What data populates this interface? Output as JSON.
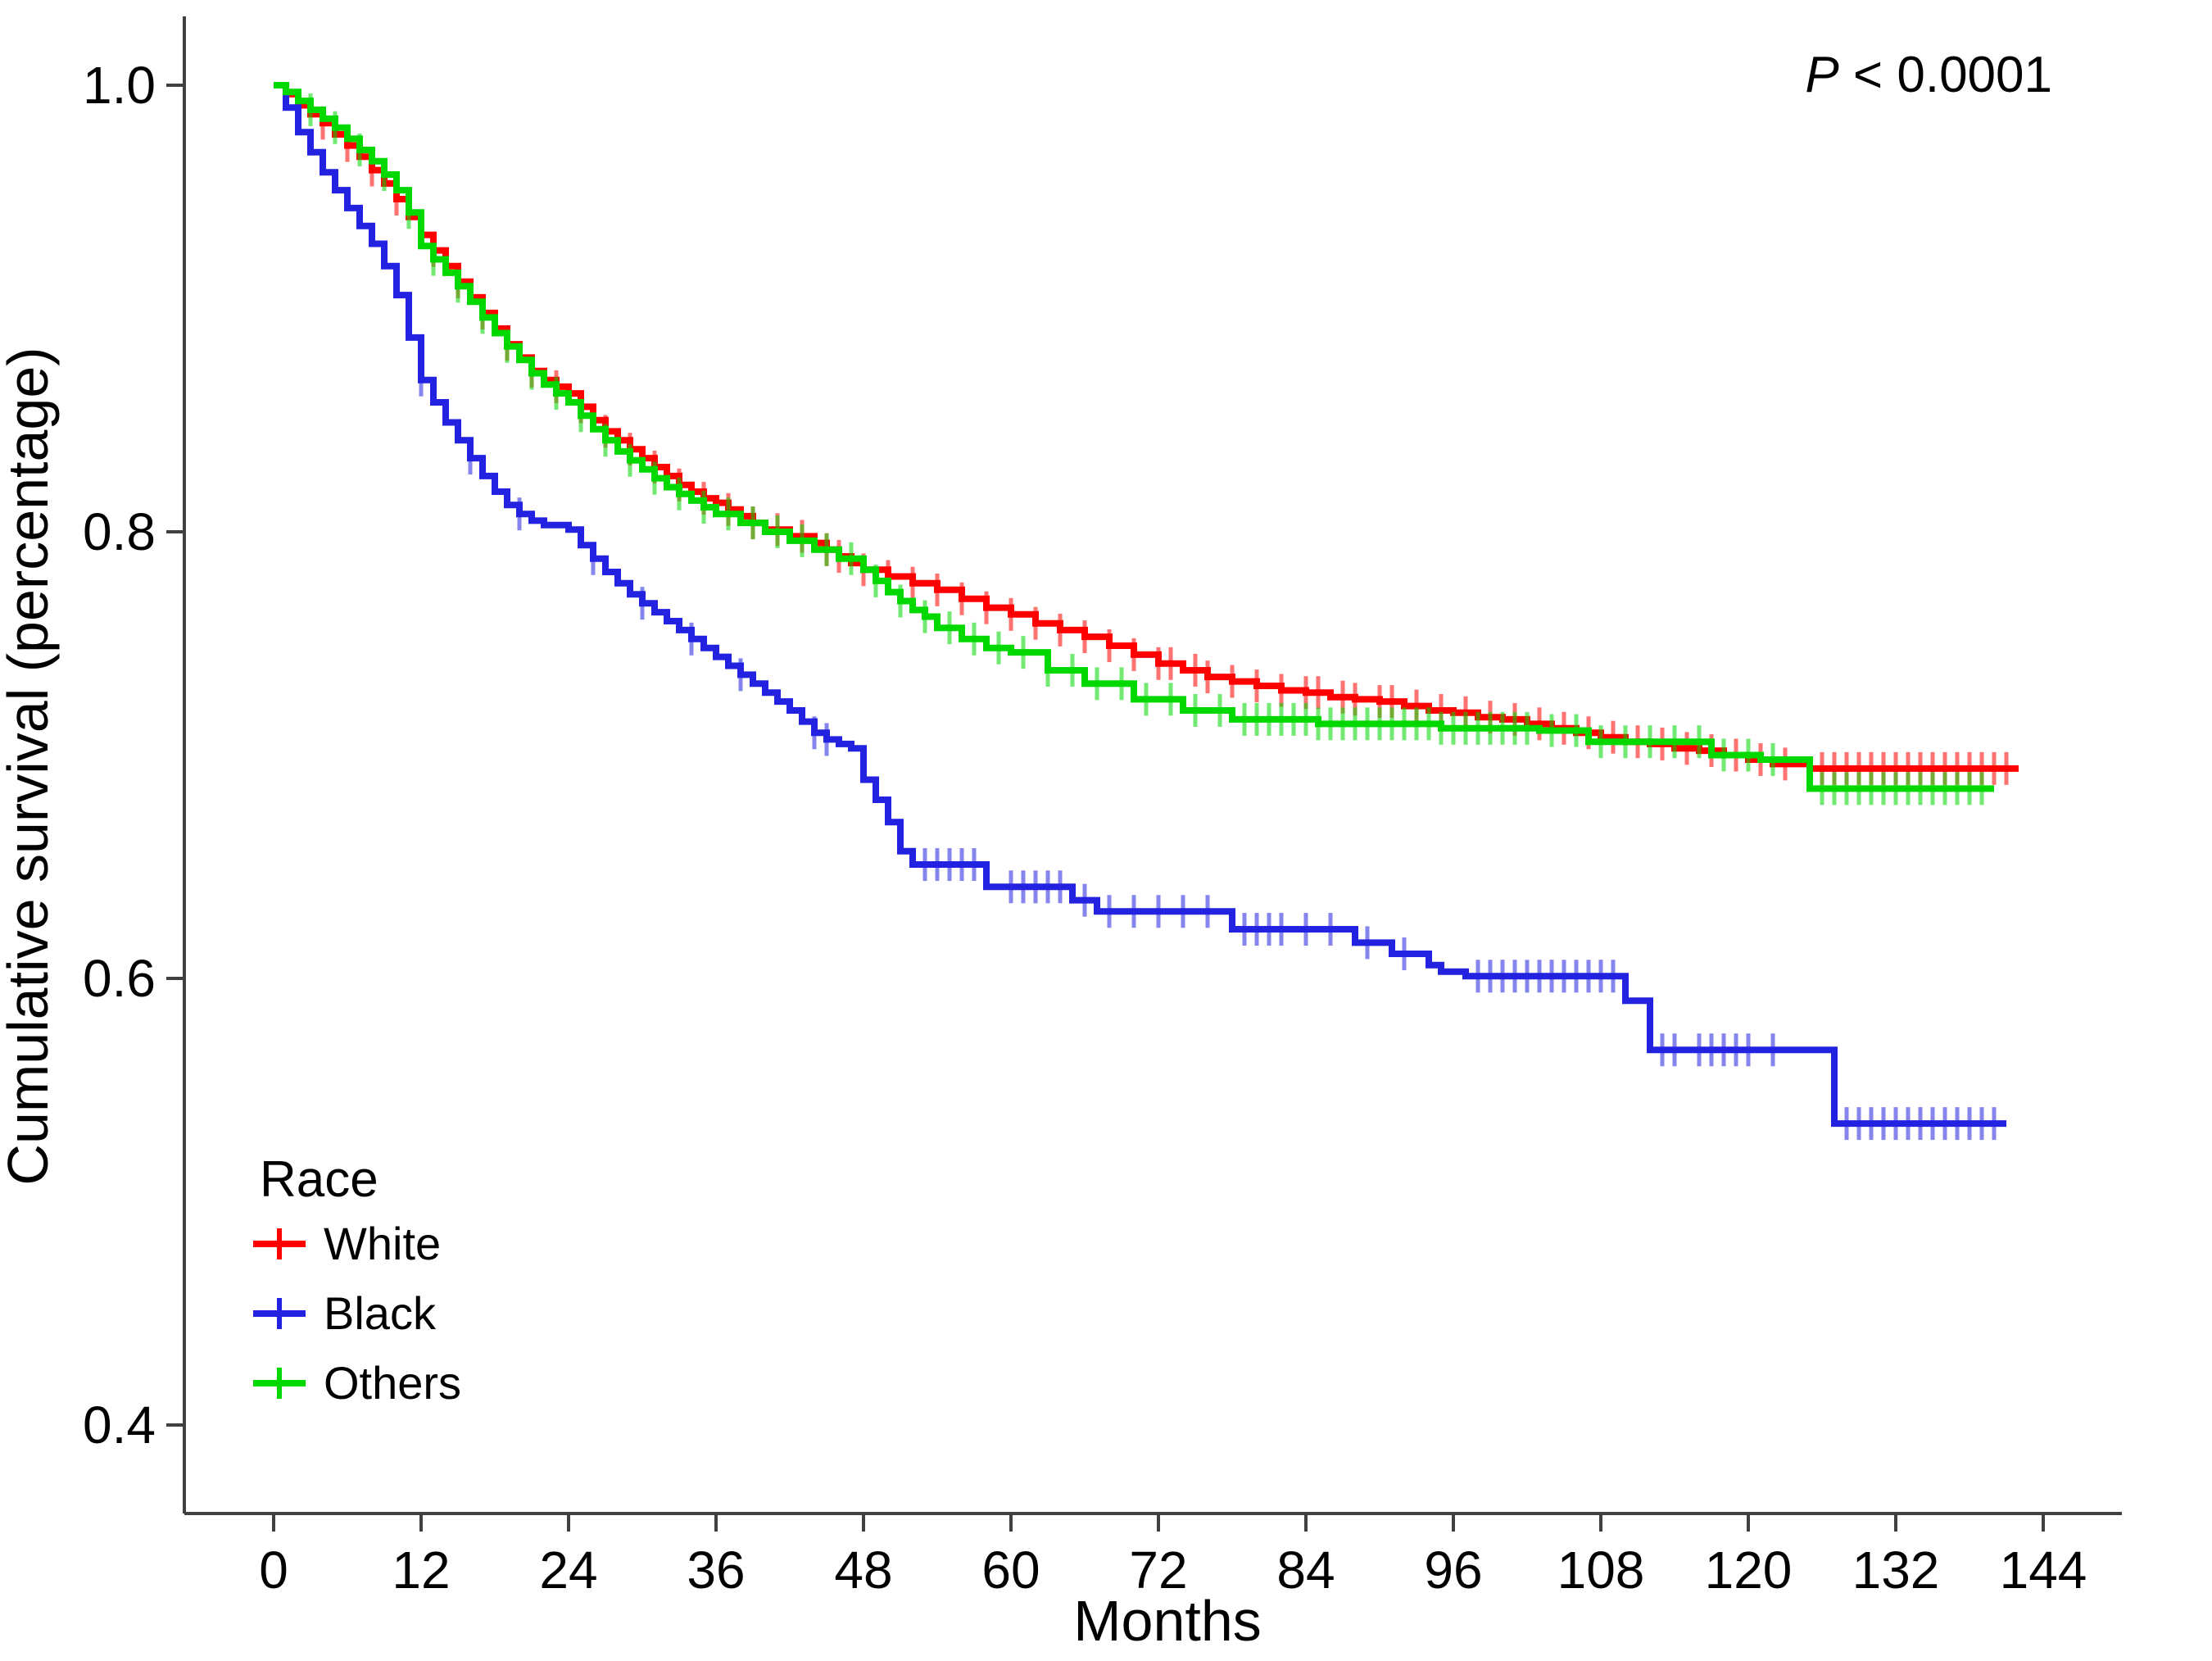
{
  "annotations": {
    "p_italic": "P",
    "p_rest": " < 0.0001"
  },
  "chart_data": {
    "type": "line",
    "subtype": "kaplan-meier-step-curves",
    "title": "",
    "xlabel": "Months",
    "ylabel": "Cumulative survival (percentage)",
    "xlim": [
      0,
      144
    ],
    "ylim": [
      0.4,
      1.0
    ],
    "grid": "off",
    "p_value": "P < 0.0001",
    "xticks": [
      0,
      12,
      24,
      36,
      48,
      60,
      72,
      84,
      96,
      108,
      120,
      132,
      144
    ],
    "yticks": [
      {
        "value": 1.0,
        "label": "1.0"
      },
      {
        "value": 0.8,
        "label": "0.8"
      },
      {
        "value": 0.6,
        "label": "0.6"
      },
      {
        "value": 0.4,
        "label": "0.4"
      }
    ],
    "legend": {
      "title": "Race",
      "position": "bottom-left",
      "items": [
        {
          "label": "White",
          "color": "#ff0000"
        },
        {
          "label": "Black",
          "color": "#2222e0"
        },
        {
          "label": "Others",
          "color": "#00d800"
        }
      ]
    },
    "series": [
      {
        "name": "White",
        "color": "#ff0000",
        "end_month": 142,
        "points": [
          [
            0,
            1.0
          ],
          [
            1,
            0.996
          ],
          [
            2,
            0.991
          ],
          [
            3,
            0.987
          ],
          [
            4,
            0.983
          ],
          [
            5,
            0.978
          ],
          [
            6,
            0.973
          ],
          [
            7,
            0.968
          ],
          [
            8,
            0.962
          ],
          [
            9,
            0.956
          ],
          [
            10,
            0.949
          ],
          [
            11,
            0.941
          ],
          [
            12,
            0.933
          ],
          [
            13,
            0.926
          ],
          [
            14,
            0.919
          ],
          [
            15,
            0.912
          ],
          [
            16,
            0.905
          ],
          [
            17,
            0.898
          ],
          [
            18,
            0.891
          ],
          [
            19,
            0.884
          ],
          [
            20,
            0.878
          ],
          [
            21,
            0.872
          ],
          [
            22,
            0.868
          ],
          [
            23,
            0.865
          ],
          [
            24,
            0.862
          ],
          [
            25,
            0.856
          ],
          [
            26,
            0.85
          ],
          [
            27,
            0.845
          ],
          [
            28,
            0.841
          ],
          [
            29,
            0.837
          ],
          [
            30,
            0.833
          ],
          [
            31,
            0.829
          ],
          [
            32,
            0.825
          ],
          [
            33,
            0.821
          ],
          [
            34,
            0.818
          ],
          [
            35,
            0.815
          ],
          [
            36,
            0.813
          ],
          [
            37,
            0.81
          ],
          [
            38,
            0.807
          ],
          [
            39,
            0.804
          ],
          [
            40,
            0.801
          ],
          [
            42,
            0.798
          ],
          [
            44,
            0.795
          ],
          [
            45,
            0.792
          ],
          [
            46,
            0.789
          ],
          [
            47,
            0.786
          ],
          [
            48,
            0.783
          ],
          [
            50,
            0.78
          ],
          [
            52,
            0.777
          ],
          [
            54,
            0.774
          ],
          [
            56,
            0.77
          ],
          [
            58,
            0.766
          ],
          [
            60,
            0.763
          ],
          [
            62,
            0.759
          ],
          [
            64,
            0.756
          ],
          [
            66,
            0.753
          ],
          [
            68,
            0.749
          ],
          [
            70,
            0.745
          ],
          [
            72,
            0.741
          ],
          [
            74,
            0.738
          ],
          [
            76,
            0.735
          ],
          [
            78,
            0.733
          ],
          [
            80,
            0.731
          ],
          [
            82,
            0.729
          ],
          [
            84,
            0.728
          ],
          [
            86,
            0.726
          ],
          [
            88,
            0.725
          ],
          [
            90,
            0.724
          ],
          [
            92,
            0.722
          ],
          [
            94,
            0.72
          ],
          [
            96,
            0.719
          ],
          [
            98,
            0.717
          ],
          [
            100,
            0.716
          ],
          [
            102,
            0.714
          ],
          [
            104,
            0.712
          ],
          [
            106,
            0.71
          ],
          [
            108,
            0.708
          ],
          [
            110,
            0.706
          ],
          [
            112,
            0.705
          ],
          [
            114,
            0.703
          ],
          [
            116,
            0.702
          ],
          [
            118,
            0.7
          ],
          [
            120,
            0.698
          ],
          [
            122,
            0.696
          ],
          [
            125,
            0.694
          ]
        ],
        "censor_ticks": [
          2,
          4,
          6,
          8,
          10,
          13,
          15,
          17,
          19,
          21,
          23,
          25,
          27,
          29,
          31,
          33,
          35,
          37,
          39,
          41,
          43,
          45,
          46,
          48,
          50,
          52,
          54,
          56,
          58,
          60,
          62,
          64,
          66,
          68,
          70,
          72,
          73,
          75,
          76,
          78,
          80,
          82,
          84,
          85,
          87,
          88,
          90,
          91,
          93,
          95,
          97,
          99,
          101,
          103,
          105,
          107,
          109,
          111,
          113,
          115,
          117,
          119,
          121,
          123,
          126,
          127,
          128,
          129,
          130,
          131,
          132,
          133,
          134,
          135,
          136,
          137,
          138,
          139,
          140,
          141
        ]
      },
      {
        "name": "Black",
        "color": "#2222e0",
        "end_month": 141,
        "points": [
          [
            0,
            1.0
          ],
          [
            1,
            0.99
          ],
          [
            2,
            0.979
          ],
          [
            3,
            0.97
          ],
          [
            4,
            0.961
          ],
          [
            5,
            0.953
          ],
          [
            6,
            0.945
          ],
          [
            7,
            0.937
          ],
          [
            8,
            0.929
          ],
          [
            9,
            0.919
          ],
          [
            10,
            0.906
          ],
          [
            11,
            0.887
          ],
          [
            12,
            0.868
          ],
          [
            13,
            0.858
          ],
          [
            14,
            0.849
          ],
          [
            15,
            0.841
          ],
          [
            16,
            0.833
          ],
          [
            17,
            0.825
          ],
          [
            18,
            0.818
          ],
          [
            19,
            0.812
          ],
          [
            20,
            0.808
          ],
          [
            21,
            0.805
          ],
          [
            22,
            0.803
          ],
          [
            24,
            0.801
          ],
          [
            25,
            0.794
          ],
          [
            26,
            0.788
          ],
          [
            27,
            0.782
          ],
          [
            28,
            0.777
          ],
          [
            29,
            0.772
          ],
          [
            30,
            0.768
          ],
          [
            31,
            0.764
          ],
          [
            32,
            0.76
          ],
          [
            33,
            0.756
          ],
          [
            34,
            0.752
          ],
          [
            35,
            0.748
          ],
          [
            36,
            0.744
          ],
          [
            37,
            0.74
          ],
          [
            38,
            0.736
          ],
          [
            39,
            0.732
          ],
          [
            40,
            0.728
          ],
          [
            41,
            0.724
          ],
          [
            42,
            0.72
          ],
          [
            43,
            0.715
          ],
          [
            44,
            0.71
          ],
          [
            45,
            0.707
          ],
          [
            46,
            0.705
          ],
          [
            47,
            0.703
          ],
          [
            48,
            0.689
          ],
          [
            49,
            0.68
          ],
          [
            50,
            0.67
          ],
          [
            51,
            0.657
          ],
          [
            52,
            0.651
          ],
          [
            58,
            0.641
          ],
          [
            65,
            0.635
          ],
          [
            67,
            0.63
          ],
          [
            78,
            0.622
          ],
          [
            88,
            0.616
          ],
          [
            91,
            0.611
          ],
          [
            94,
            0.606
          ],
          [
            95,
            0.603
          ],
          [
            97,
            0.601
          ],
          [
            110,
            0.59
          ],
          [
            112,
            0.568
          ],
          [
            127,
            0.535
          ]
        ],
        "censor_ticks": [
          12,
          16,
          20,
          26,
          30,
          34,
          38,
          44,
          45,
          53,
          54,
          55,
          56,
          57,
          60,
          61,
          62,
          63,
          64,
          66,
          68,
          70,
          72,
          74,
          76,
          79,
          80,
          81,
          82,
          84,
          86,
          89,
          92,
          98,
          99,
          100,
          101,
          102,
          103,
          104,
          105,
          106,
          107,
          108,
          109,
          113,
          114,
          116,
          117,
          118,
          119,
          120,
          122,
          128,
          129,
          130,
          131,
          132,
          133,
          134,
          135,
          136,
          137,
          138,
          139,
          140
        ]
      },
      {
        "name": "Others",
        "color": "#00d800",
        "end_month": 140,
        "points": [
          [
            0,
            1.0
          ],
          [
            1,
            0.997
          ],
          [
            2,
            0.993
          ],
          [
            3,
            0.989
          ],
          [
            4,
            0.985
          ],
          [
            5,
            0.981
          ],
          [
            6,
            0.976
          ],
          [
            7,
            0.971
          ],
          [
            8,
            0.966
          ],
          [
            9,
            0.96
          ],
          [
            10,
            0.953
          ],
          [
            11,
            0.943
          ],
          [
            12,
            0.928
          ],
          [
            13,
            0.922
          ],
          [
            14,
            0.916
          ],
          [
            15,
            0.91
          ],
          [
            16,
            0.903
          ],
          [
            17,
            0.896
          ],
          [
            18,
            0.889
          ],
          [
            19,
            0.883
          ],
          [
            20,
            0.877
          ],
          [
            21,
            0.871
          ],
          [
            22,
            0.866
          ],
          [
            23,
            0.862
          ],
          [
            24,
            0.858
          ],
          [
            25,
            0.852
          ],
          [
            26,
            0.846
          ],
          [
            27,
            0.841
          ],
          [
            28,
            0.836
          ],
          [
            29,
            0.832
          ],
          [
            30,
            0.828
          ],
          [
            31,
            0.824
          ],
          [
            32,
            0.82
          ],
          [
            33,
            0.817
          ],
          [
            34,
            0.814
          ],
          [
            35,
            0.811
          ],
          [
            36,
            0.808
          ],
          [
            38,
            0.804
          ],
          [
            40,
            0.8
          ],
          [
            42,
            0.796
          ],
          [
            44,
            0.792
          ],
          [
            46,
            0.788
          ],
          [
            48,
            0.783
          ],
          [
            49,
            0.778
          ],
          [
            50,
            0.773
          ],
          [
            51,
            0.769
          ],
          [
            52,
            0.765
          ],
          [
            53,
            0.762
          ],
          [
            54,
            0.757
          ],
          [
            56,
            0.752
          ],
          [
            58,
            0.748
          ],
          [
            60,
            0.746
          ],
          [
            63,
            0.738
          ],
          [
            66,
            0.732
          ],
          [
            70,
            0.725
          ],
          [
            74,
            0.72
          ],
          [
            78,
            0.716
          ],
          [
            85,
            0.714
          ],
          [
            95,
            0.712
          ],
          [
            103,
            0.711
          ],
          [
            107,
            0.706
          ],
          [
            117,
            0.7
          ],
          [
            121,
            0.698
          ],
          [
            125,
            0.685
          ]
        ],
        "censor_ticks": [
          3,
          5,
          7,
          9,
          11,
          13,
          15,
          17,
          19,
          21,
          23,
          25,
          27,
          29,
          31,
          33,
          35,
          37,
          39,
          41,
          43,
          45,
          47,
          49,
          51,
          53,
          55,
          57,
          59,
          61,
          63,
          65,
          67,
          69,
          71,
          73,
          75,
          77,
          79,
          80,
          81,
          82,
          83,
          84,
          85,
          86,
          87,
          88,
          89,
          90,
          91,
          92,
          93,
          94,
          95,
          96,
          97,
          98,
          99,
          100,
          101,
          102,
          104,
          106,
          108,
          110,
          112,
          114,
          116,
          118,
          120,
          122,
          126,
          127,
          128,
          129,
          130,
          131,
          132,
          133,
          134,
          135,
          136,
          137,
          138,
          139
        ]
      }
    ]
  }
}
